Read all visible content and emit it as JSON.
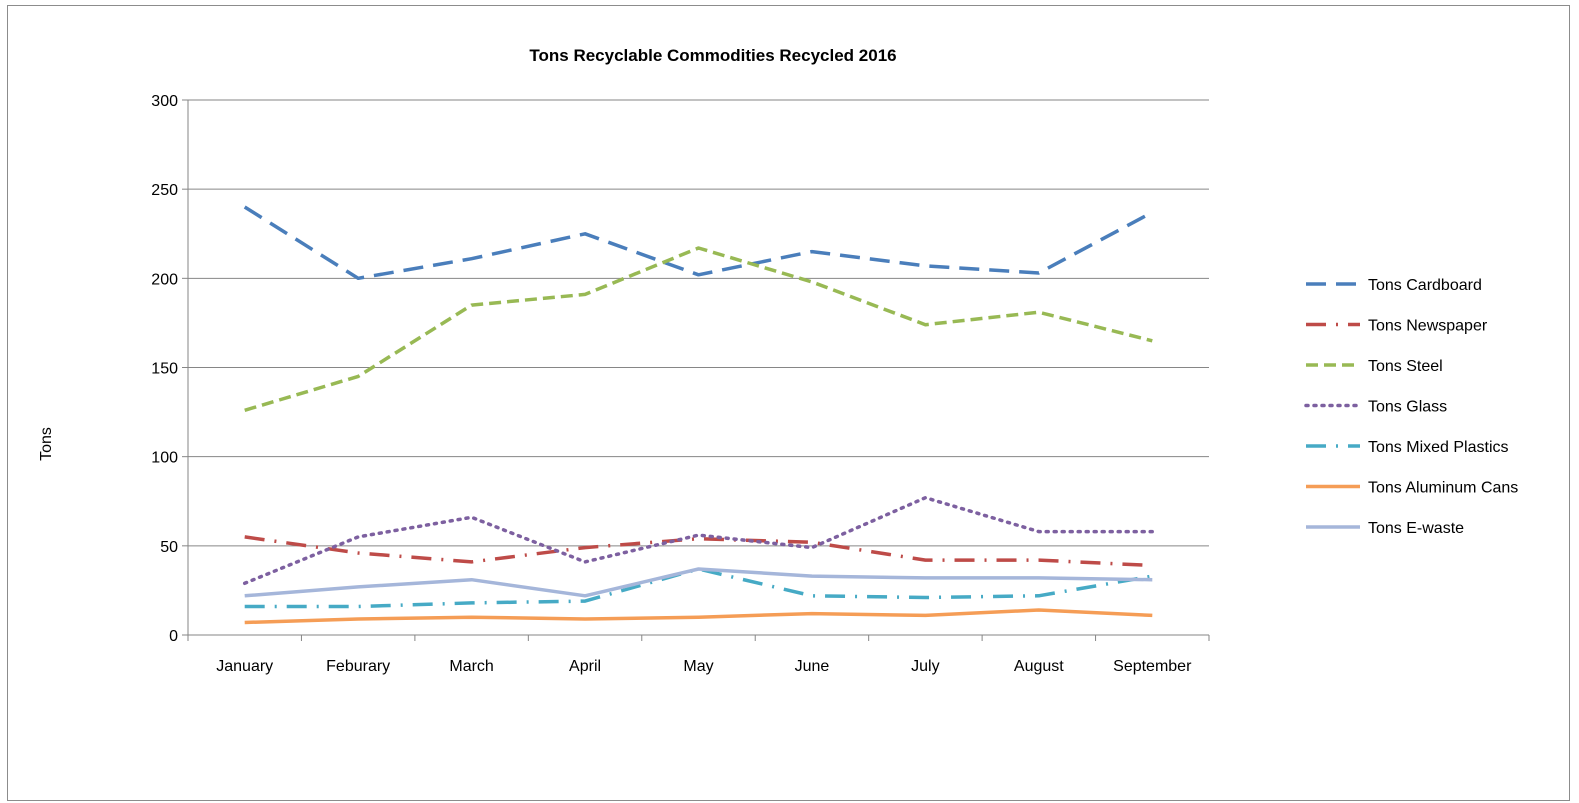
{
  "chart_data": {
    "type": "line",
    "title": "Tons Recyclable Commodities Recycled 2016",
    "xlabel": "",
    "ylabel": "Tons",
    "ylim": [
      0,
      300
    ],
    "yticks": [
      0,
      50,
      100,
      150,
      200,
      250,
      300
    ],
    "grid": "horizontal",
    "legend_position": "right",
    "categories": [
      "January",
      "Feburary",
      "March",
      "April",
      "May",
      "June",
      "July",
      "August",
      "September"
    ],
    "series": [
      {
        "name": "Tons Cardboard",
        "color": "#4a7ebb",
        "style": "long-dash",
        "values": [
          240,
          200,
          211,
          225,
          202,
          215,
          207,
          203,
          237
        ]
      },
      {
        "name": "Tons Newspaper",
        "color": "#be4b48",
        "style": "long-dash-dot",
        "values": [
          55,
          46,
          41,
          49,
          54,
          52,
          42,
          42,
          39
        ]
      },
      {
        "name": "Tons Steel",
        "color": "#98b954",
        "style": "dash",
        "values": [
          126,
          145,
          185,
          191,
          217,
          198,
          174,
          181,
          165
        ]
      },
      {
        "name": "Tons Glass",
        "color": "#7d60a0",
        "style": "dot",
        "values": [
          29,
          55,
          66,
          41,
          56,
          49,
          77,
          58,
          58
        ]
      },
      {
        "name": "Tons Mixed Plastics",
        "color": "#46aac5",
        "style": "long-dash-dot",
        "values": [
          16,
          16,
          18,
          19,
          37,
          22,
          21,
          22,
          33
        ]
      },
      {
        "name": "Tons Aluminum Cans",
        "color": "#f59d56",
        "style": "solid",
        "values": [
          7,
          9,
          10,
          9,
          10,
          12,
          11,
          14,
          11
        ]
      },
      {
        "name": "Tons E-waste",
        "color": "#a5b6da",
        "style": "solid",
        "values": [
          22,
          27,
          31,
          22,
          37,
          33,
          32,
          32,
          31
        ]
      }
    ]
  }
}
